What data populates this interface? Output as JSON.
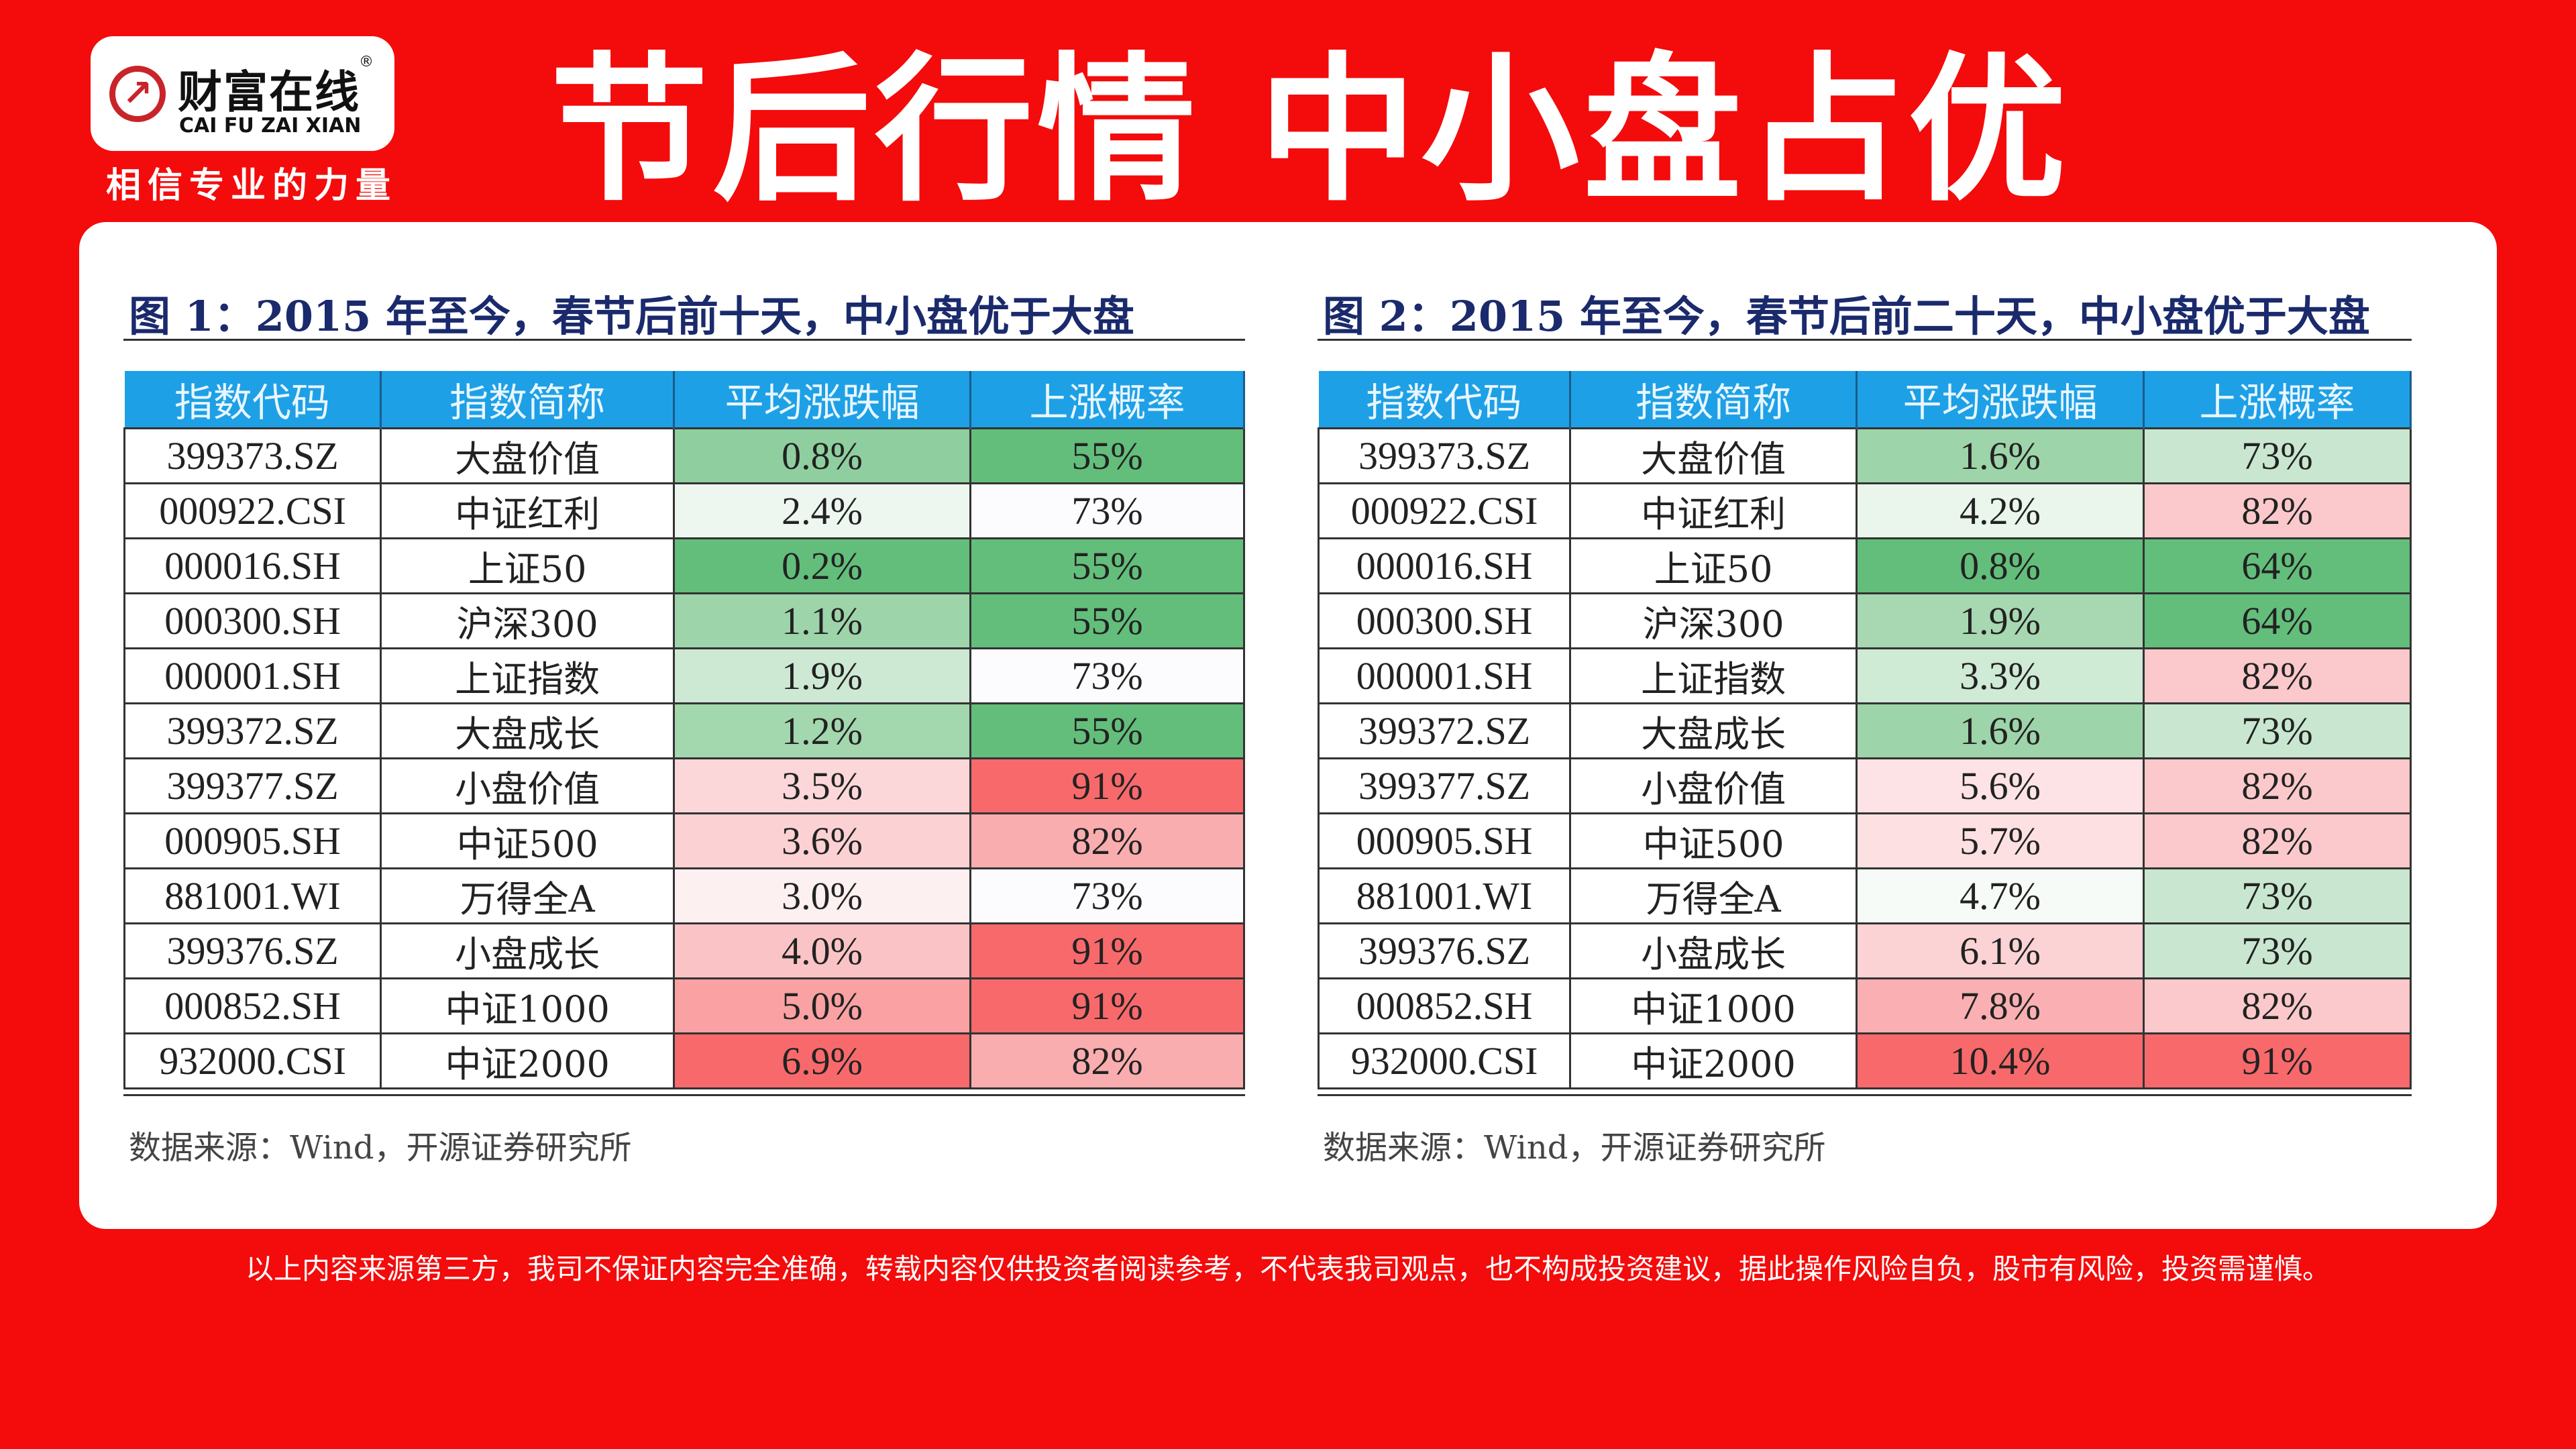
{
  "logo": {
    "cn": "财富在线",
    "reg": "®",
    "en": "CAI FU ZAI XIAN",
    "tagline": "相信专业的力量"
  },
  "title": "节后行情 中小盘占优",
  "columns": [
    "指数代码",
    "指数简称",
    "平均涨跌幅",
    "上涨概率"
  ],
  "figures": [
    {
      "title": "图 1：2015 年至今，春节后前十天，中小盘优于大盘",
      "source": "数据来源：Wind，开源证券研究所",
      "rows": [
        {
          "code": "399373.SZ",
          "name": "大盘价值",
          "avg": "0.8%",
          "prob": "55%",
          "avg_color": "#8fcf9f",
          "prob_color": "#63be7b"
        },
        {
          "code": "000922.CSI",
          "name": "中证红利",
          "avg": "2.4%",
          "prob": "73%",
          "avg_color": "#edf6ef",
          "prob_color": "#fcfcff"
        },
        {
          "code": "000016.SH",
          "name": "上证50",
          "avg": "0.2%",
          "prob": "55%",
          "avg_color": "#63be7b",
          "prob_color": "#63be7b"
        },
        {
          "code": "000300.SH",
          "name": "沪深300",
          "avg": "1.1%",
          "prob": "55%",
          "avg_color": "#9dd4a9",
          "prob_color": "#63be7b"
        },
        {
          "code": "000001.SH",
          "name": "上证指数",
          "avg": "1.9%",
          "prob": "73%",
          "avg_color": "#cde9d3",
          "prob_color": "#fcfcff"
        },
        {
          "code": "399372.SZ",
          "name": "大盘成长",
          "avg": "1.2%",
          "prob": "55%",
          "avg_color": "#a3d7ae",
          "prob_color": "#63be7b"
        },
        {
          "code": "399377.SZ",
          "name": "小盘价值",
          "avg": "3.5%",
          "prob": "91%",
          "avg_color": "#fbd7d9",
          "prob_color": "#f8696b"
        },
        {
          "code": "000905.SH",
          "name": "中证500",
          "avg": "3.6%",
          "prob": "82%",
          "avg_color": "#fbd1d3",
          "prob_color": "#faadaf"
        },
        {
          "code": "881001.WI",
          "name": "万得全A",
          "avg": "3.0%",
          "prob": "73%",
          "avg_color": "#fdf0f1",
          "prob_color": "#fcfcff"
        },
        {
          "code": "399376.SZ",
          "name": "小盘成长",
          "avg": "4.0%",
          "prob": "91%",
          "avg_color": "#fac4c6",
          "prob_color": "#f8696b"
        },
        {
          "code": "000852.SH",
          "name": "中证1000",
          "avg": "5.0%",
          "prob": "91%",
          "avg_color": "#f9a1a3",
          "prob_color": "#f8696b"
        },
        {
          "code": "932000.CSI",
          "name": "中证2000",
          "avg": "6.9%",
          "prob": "82%",
          "avg_color": "#f8696b",
          "prob_color": "#faadaf"
        }
      ]
    },
    {
      "title": "图 2：2015 年至今，春节后前二十天，中小盘优于大盘",
      "source": "数据来源：Wind，开源证券研究所",
      "rows": [
        {
          "code": "399373.SZ",
          "name": "大盘价值",
          "avg": "1.6%",
          "prob": "73%",
          "avg_color": "#9dd4a9",
          "prob_color": "#c9e7d0"
        },
        {
          "code": "000922.CSI",
          "name": "中证红利",
          "avg": "4.2%",
          "prob": "82%",
          "avg_color": "#eaf5ec",
          "prob_color": "#fbc9cb"
        },
        {
          "code": "000016.SH",
          "name": "上证50",
          "avg": "0.8%",
          "prob": "64%",
          "avg_color": "#63be7b",
          "prob_color": "#63be7b"
        },
        {
          "code": "000300.SH",
          "name": "沪深300",
          "avg": "1.9%",
          "prob": "64%",
          "avg_color": "#a7d8b2",
          "prob_color": "#63be7b"
        },
        {
          "code": "000001.SH",
          "name": "上证指数",
          "avg": "3.3%",
          "prob": "82%",
          "avg_color": "#cfead5",
          "prob_color": "#fbc9cb"
        },
        {
          "code": "399372.SZ",
          "name": "大盘成长",
          "avg": "1.6%",
          "prob": "73%",
          "avg_color": "#9dd4a9",
          "prob_color": "#c9e7d0"
        },
        {
          "code": "399377.SZ",
          "name": "小盘价值",
          "avg": "5.6%",
          "prob": "82%",
          "avg_color": "#fde3e5",
          "prob_color": "#fbc9cb"
        },
        {
          "code": "000905.SH",
          "name": "中证500",
          "avg": "5.7%",
          "prob": "82%",
          "avg_color": "#fde0e2",
          "prob_color": "#fbc9cb"
        },
        {
          "code": "881001.WI",
          "name": "万得全A",
          "avg": "4.7%",
          "prob": "73%",
          "avg_color": "#f7fbf7",
          "prob_color": "#c9e7d0"
        },
        {
          "code": "399376.SZ",
          "name": "小盘成长",
          "avg": "6.1%",
          "prob": "73%",
          "avg_color": "#fcd3d5",
          "prob_color": "#c9e7d0"
        },
        {
          "code": "000852.SH",
          "name": "中证1000",
          "avg": "7.8%",
          "prob": "82%",
          "avg_color": "#fab0b2",
          "prob_color": "#fbc9cb"
        },
        {
          "code": "932000.CSI",
          "name": "中证2000",
          "avg": "10.4%",
          "prob": "91%",
          "avg_color": "#f8696b",
          "prob_color": "#f8696b"
        }
      ]
    }
  ],
  "disclaimer": "以上内容来源第三方，我司不保证内容完全准确，转载内容仅供投资者阅读参考，不代表我司观点，也不构成投资建议，据此操作风险自负，股市有风险，投资需谨慎。"
}
